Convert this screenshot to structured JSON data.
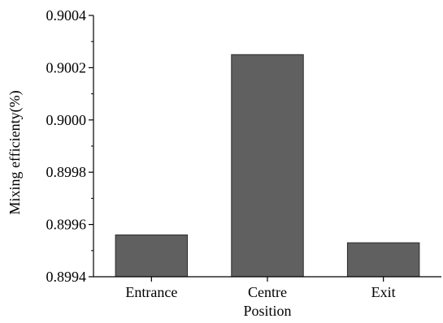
{
  "chart_data": {
    "type": "bar",
    "title": "",
    "xlabel": "Position",
    "ylabel": "Mixing efficienty(%)",
    "categories": [
      "Entrance",
      "Centre",
      "Exit"
    ],
    "values": [
      0.89956,
      0.90025,
      0.89953
    ],
    "ylim": [
      0.8994,
      0.9004
    ],
    "yticks": [
      "0.8994",
      "0.8996",
      "0.8998",
      "0.9000",
      "0.9002",
      "0.9004"
    ],
    "ytick_values": [
      0.8994,
      0.8996,
      0.8998,
      0.9,
      0.9002,
      0.9004
    ],
    "grid": false,
    "legend": "none",
    "bar_color": "#606060",
    "bar_edge_color": "#2b2b2b"
  }
}
